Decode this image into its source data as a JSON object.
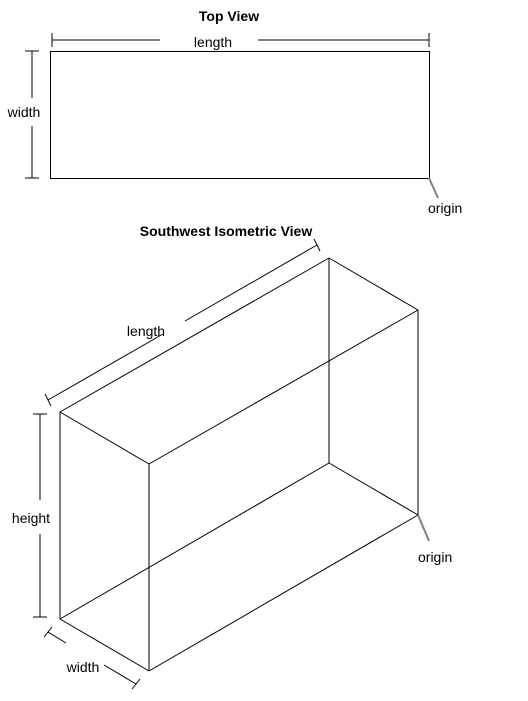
{
  "top_view": {
    "title": "Top View",
    "length_label": "length",
    "width_label": "width",
    "origin_label": "origin"
  },
  "iso_view": {
    "title": "Southwest Isometric View",
    "length_label": "length",
    "height_label": "height",
    "width_label": "width",
    "origin_label": "origin"
  },
  "colors": {
    "line": "#000000",
    "leader": "#808080",
    "background": "#ffffff"
  }
}
